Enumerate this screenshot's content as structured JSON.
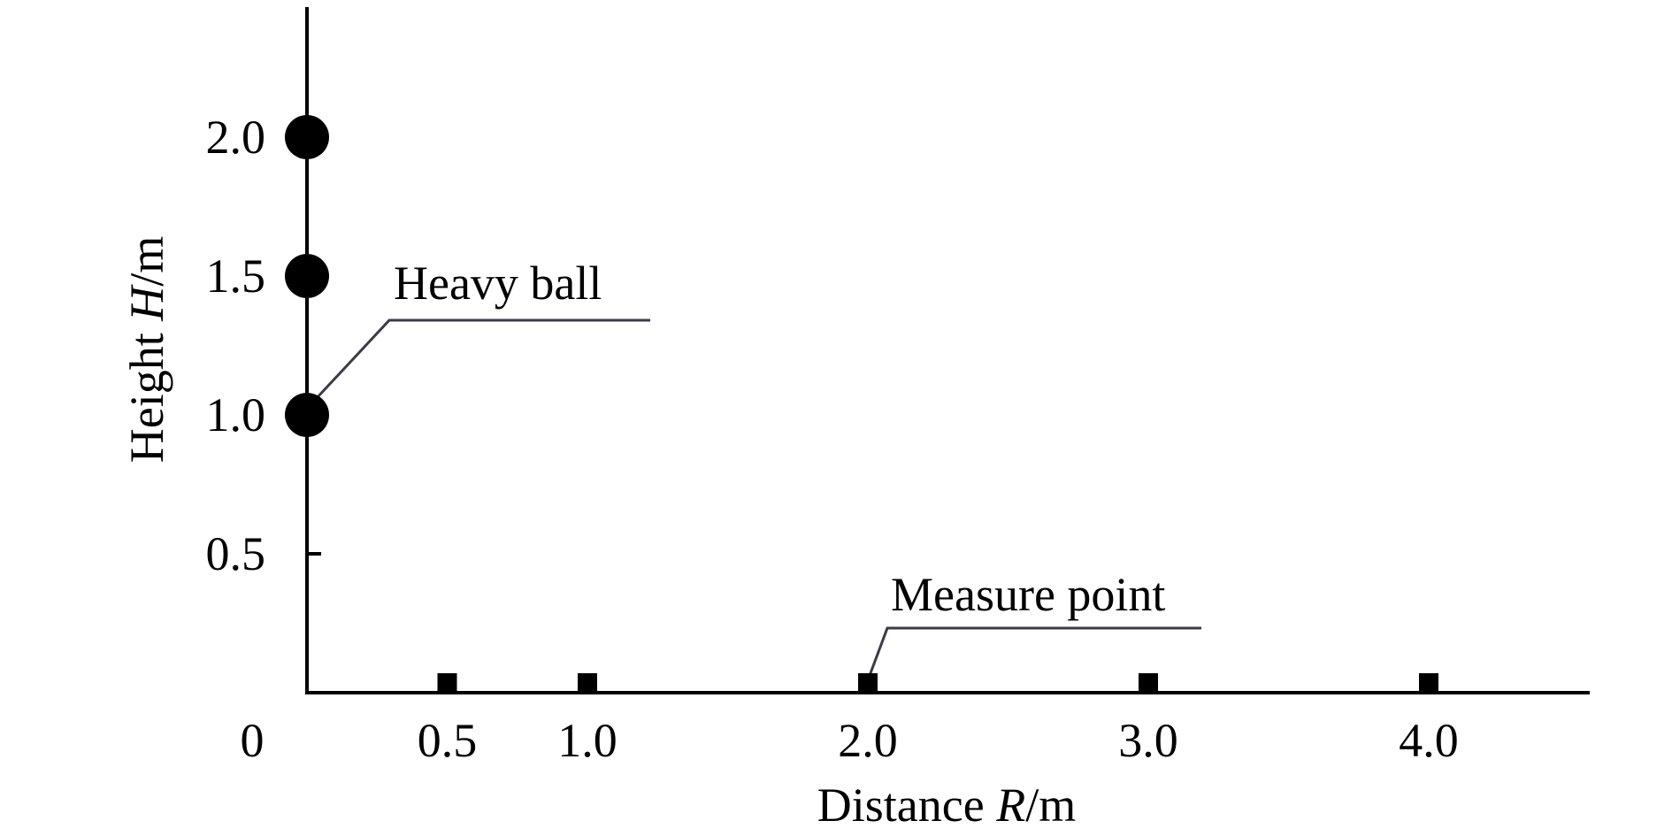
{
  "chart_data": {
    "type": "scatter",
    "title": "",
    "xlabel": {
      "prefix": "Distance ",
      "var": "R",
      "suffix": "/m"
    },
    "ylabel": {
      "prefix": "Height ",
      "var": "H",
      "suffix": "/m"
    },
    "xlim": [
      0,
      4.5
    ],
    "ylim": [
      0,
      2.4
    ],
    "x_ticks": [
      "0",
      "0.5",
      "1.0",
      "2.0",
      "3.0",
      "4.0"
    ],
    "x_tick_values": [
      0,
      0.5,
      1.0,
      2.0,
      3.0,
      4.0
    ],
    "y_ticks": [
      "0.5",
      "1.0",
      "1.5",
      "2.0"
    ],
    "y_tick_values": [
      0.5,
      1.0,
      1.5,
      2.0
    ],
    "grid": false,
    "series": [
      {
        "marker": "circle",
        "points": [
          {
            "x": 0,
            "y": 1.0
          },
          {
            "x": 0,
            "y": 1.5
          },
          {
            "x": 0,
            "y": 2.0
          }
        ]
      },
      {
        "marker": "square",
        "points": [
          {
            "x": 0.5,
            "y": 0
          },
          {
            "x": 1.0,
            "y": 0
          },
          {
            "x": 2.0,
            "y": 0
          },
          {
            "x": 3.0,
            "y": 0
          },
          {
            "x": 4.0,
            "y": 0
          }
        ]
      }
    ],
    "annotations": [
      {
        "text": "Heavy ball",
        "target": {
          "x": 0,
          "y": 1.0
        }
      },
      {
        "text": "Measure point",
        "target": {
          "x": 2.0,
          "y": 0
        }
      }
    ],
    "colors": {
      "marker": "#000000",
      "axis": "#000000",
      "leader": "#3a3a4a"
    }
  }
}
